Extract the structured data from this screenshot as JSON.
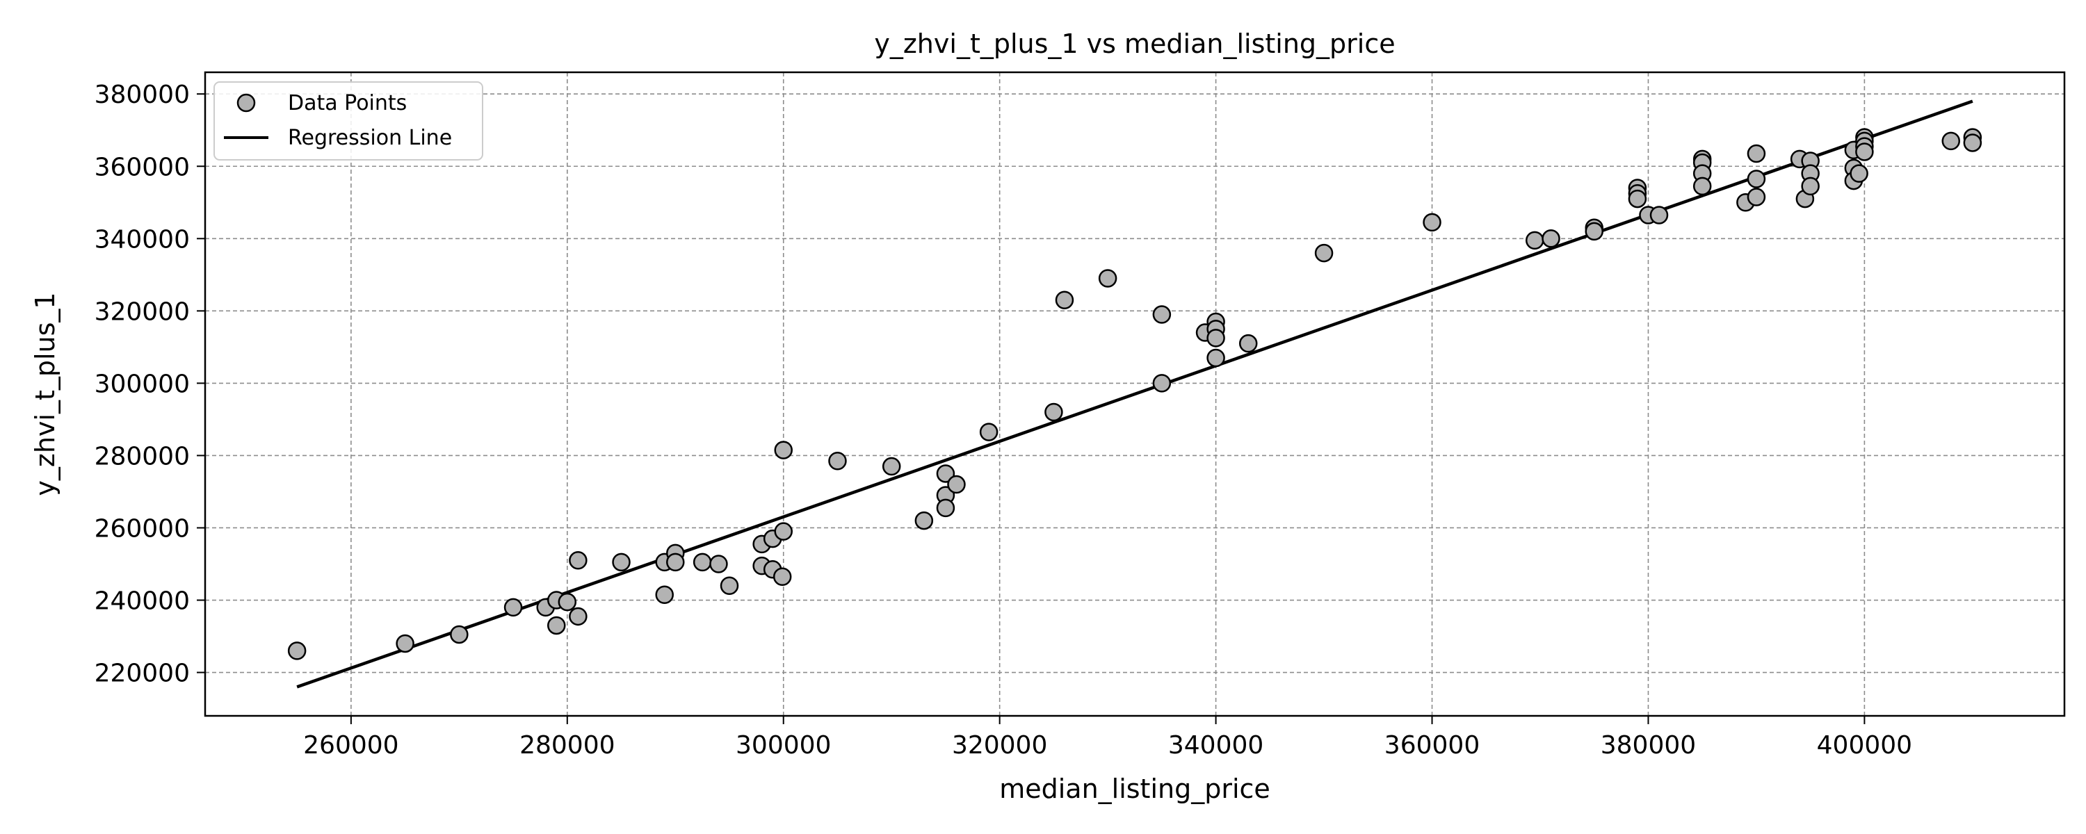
{
  "chart_data": {
    "type": "scatter",
    "title": "y_zhvi_t_plus_1 vs median_listing_price",
    "xlabel": "median_listing_price",
    "ylabel": "y_zhvi_t_plus_1",
    "xlim": [
      246500,
      418500
    ],
    "ylim": [
      208000,
      386000
    ],
    "xticks": [
      260000,
      280000,
      300000,
      320000,
      340000,
      360000,
      380000,
      400000
    ],
    "yticks": [
      220000,
      240000,
      260000,
      280000,
      300000,
      320000,
      340000,
      360000,
      380000
    ],
    "grid": true,
    "legend": {
      "position": "top-left",
      "entries": [
        "Data Points",
        "Regression Line"
      ]
    },
    "colors": {
      "marker_fill": "#b3b3b3",
      "marker_edge": "#000000",
      "line": "#000000",
      "grid": "#8c8c8c"
    },
    "series": [
      {
        "name": "Data Points",
        "kind": "scatter",
        "points": [
          [
            255000,
            226000
          ],
          [
            265000,
            228000
          ],
          [
            270000,
            230500
          ],
          [
            275000,
            238000
          ],
          [
            278000,
            238000
          ],
          [
            279000,
            240000
          ],
          [
            279000,
            233000
          ],
          [
            280000,
            239500
          ],
          [
            281000,
            235500
          ],
          [
            281000,
            251000
          ],
          [
            285000,
            250500
          ],
          [
            289000,
            241500
          ],
          [
            289000,
            250500
          ],
          [
            290000,
            253000
          ],
          [
            290000,
            250500
          ],
          [
            292500,
            250500
          ],
          [
            294000,
            250000
          ],
          [
            295000,
            244000
          ],
          [
            298000,
            255500
          ],
          [
            298000,
            249500
          ],
          [
            299000,
            257000
          ],
          [
            299000,
            248500
          ],
          [
            299900,
            246500
          ],
          [
            300000,
            259000
          ],
          [
            300000,
            281500
          ],
          [
            305000,
            278500
          ],
          [
            310000,
            277000
          ],
          [
            313000,
            262000
          ],
          [
            315000,
            275000
          ],
          [
            315000,
            269000
          ],
          [
            315000,
            265500
          ],
          [
            316000,
            272000
          ],
          [
            319000,
            286500
          ],
          [
            325000,
            292000
          ],
          [
            326000,
            323000
          ],
          [
            330000,
            329000
          ],
          [
            335000,
            319000
          ],
          [
            335000,
            300000
          ],
          [
            339000,
            314000
          ],
          [
            340000,
            317000
          ],
          [
            340000,
            315000
          ],
          [
            340000,
            312500
          ],
          [
            340000,
            307000
          ],
          [
            343000,
            311000
          ],
          [
            350000,
            336000
          ],
          [
            360000,
            344500
          ],
          [
            369500,
            339500
          ],
          [
            371000,
            340000
          ],
          [
            375000,
            343000
          ],
          [
            375000,
            342000
          ],
          [
            379000,
            354000
          ],
          [
            379000,
            352500
          ],
          [
            379000,
            351000
          ],
          [
            380000,
            346500
          ],
          [
            381000,
            346500
          ],
          [
            385000,
            362000
          ],
          [
            385000,
            361000
          ],
          [
            385000,
            358000
          ],
          [
            385000,
            354500
          ],
          [
            389000,
            350000
          ],
          [
            390000,
            363500
          ],
          [
            390000,
            356500
          ],
          [
            390000,
            351500
          ],
          [
            394000,
            362000
          ],
          [
            394500,
            351000
          ],
          [
            395000,
            361500
          ],
          [
            395000,
            358000
          ],
          [
            395000,
            354500
          ],
          [
            399000,
            364500
          ],
          [
            399000,
            359500
          ],
          [
            399000,
            356000
          ],
          [
            399500,
            358000
          ],
          [
            400000,
            368000
          ],
          [
            400000,
            367000
          ],
          [
            400000,
            365500
          ],
          [
            400000,
            364000
          ],
          [
            408000,
            367000
          ],
          [
            410000,
            368000
          ],
          [
            410000,
            366500
          ]
        ]
      },
      {
        "name": "Regression Line",
        "kind": "line",
        "points": [
          [
            255000,
            216000
          ],
          [
            410000,
            378000
          ]
        ]
      }
    ]
  }
}
